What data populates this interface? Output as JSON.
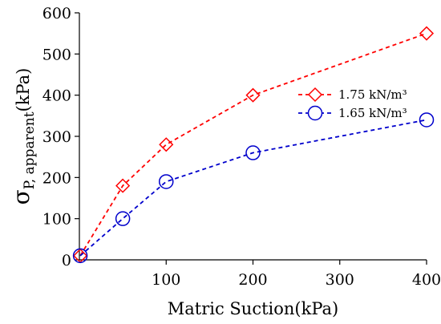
{
  "chart_data": {
    "type": "line",
    "title": "",
    "xlabel": "Matric Suction(kPa)",
    "ylabel": {
      "sigma": "σ",
      "subscript": "P, apparent",
      "unit": "(kPa)"
    },
    "xlim": [
      0,
      400
    ],
    "ylim": [
      0,
      600
    ],
    "x_ticks": [
      100,
      200,
      300,
      400
    ],
    "y_ticks": [
      0,
      100,
      200,
      300,
      400,
      500,
      600
    ],
    "grid": false,
    "legend_position": "center-right",
    "series": [
      {
        "name": "1.75 kN/m³",
        "marker": "diamond",
        "color": "#ff0000",
        "line_style": "dashed",
        "x": [
          1,
          50,
          100,
          200,
          400
        ],
        "y": [
          10,
          180,
          280,
          400,
          550
        ]
      },
      {
        "name": "1.65 kN/m³",
        "marker": "circle",
        "color": "#0000cc",
        "line_style": "dashed",
        "x": [
          1,
          50,
          100,
          200,
          400
        ],
        "y": [
          10,
          100,
          190,
          260,
          340
        ]
      }
    ]
  }
}
